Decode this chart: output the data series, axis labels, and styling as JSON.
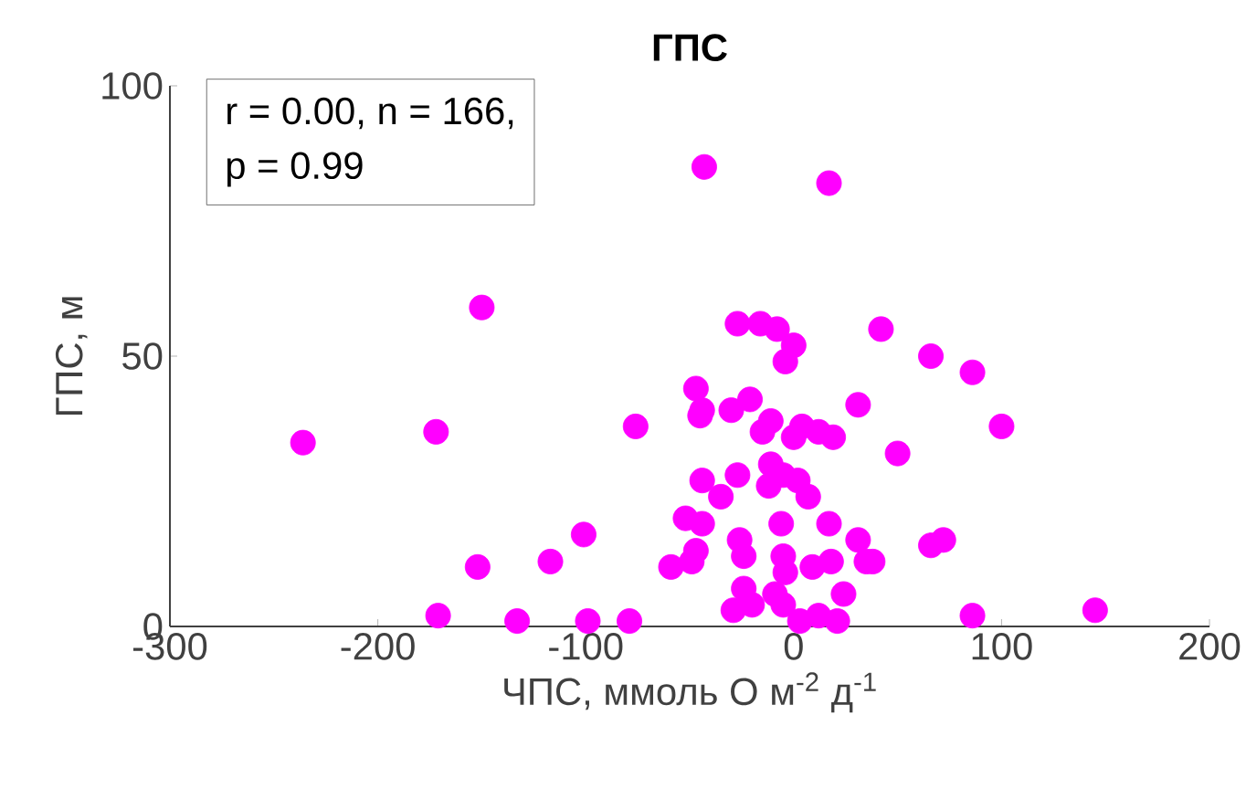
{
  "chart_data": {
    "type": "scatter",
    "title": "ГПС",
    "xlabel": "ЧПС, ммоль О м$^{-2}$ д$^{-1}$",
    "ylabel": "ГПС, м",
    "annotations": [
      "r = 0.00, n = 166,",
      "p = 0.99"
    ],
    "x": [
      -43,
      -150,
      -236,
      -172,
      -76,
      -47,
      -45,
      -44,
      -52,
      -44,
      -101,
      -152,
      -117,
      -59,
      -47,
      -49,
      -171,
      -133,
      -99,
      -79,
      17,
      -27,
      -16,
      -8,
      0,
      -4,
      42,
      66,
      86,
      -44,
      -30,
      -21,
      31,
      -11,
      -15,
      0,
      4,
      12,
      19,
      50,
      100,
      -27,
      -35,
      -11,
      -12,
      -5,
      2,
      7,
      -6,
      17,
      31,
      -26,
      -24,
      66,
      72,
      -5,
      -4,
      9,
      18,
      35,
      38,
      -24,
      24,
      -29,
      -20,
      -9,
      -5,
      3,
      12,
      21,
      86,
      145
    ],
    "values": [
      85,
      59,
      34,
      36,
      37,
      44,
      39,
      27,
      20,
      19,
      17,
      11,
      12,
      11,
      14,
      12,
      2,
      1,
      1,
      1,
      82,
      56,
      56,
      55,
      52,
      49,
      55,
      50,
      47,
      40,
      40,
      42,
      41,
      38,
      36,
      35,
      37,
      36,
      35,
      32,
      37,
      28,
      24,
      30,
      26,
      28,
      27,
      24,
      19,
      19,
      16,
      16,
      13,
      15,
      16,
      13,
      10,
      11,
      12,
      12,
      12,
      7,
      6,
      3,
      4,
      6,
      4,
      1,
      2,
      1,
      2,
      3
    ],
    "color": "#ff00ff",
    "marker": "circle",
    "xlim": [
      -300,
      200
    ],
    "ylim": [
      0,
      100
    ],
    "xticks": [
      -300,
      -200,
      -100,
      0,
      100,
      200
    ],
    "yticks": [
      0,
      50,
      100
    ]
  }
}
